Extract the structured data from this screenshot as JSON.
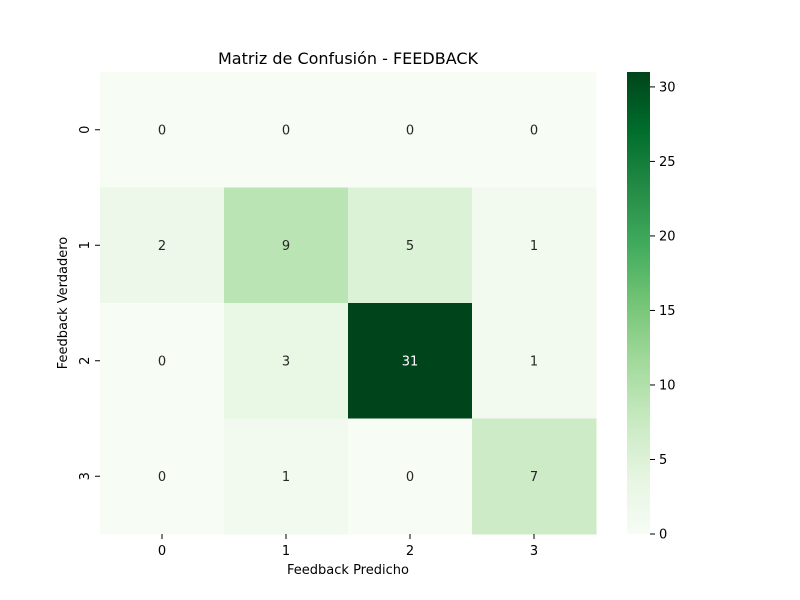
{
  "chart_data": {
    "type": "heatmap",
    "title": "Matriz de Confusión - FEEDBACK",
    "xlabel": "Feedback Predicho",
    "ylabel": "Feedback Verdadero",
    "x_categories": [
      "0",
      "1",
      "2",
      "3"
    ],
    "y_categories": [
      "0",
      "1",
      "2",
      "3"
    ],
    "values": [
      [
        0,
        0,
        0,
        0
      ],
      [
        2,
        9,
        5,
        1
      ],
      [
        0,
        3,
        31,
        1
      ],
      [
        0,
        1,
        0,
        7
      ]
    ],
    "colorbar": {
      "min": 0,
      "max": 31,
      "ticks": [
        "0",
        "5",
        "10",
        "15",
        "20",
        "25",
        "30"
      ],
      "colormap": "Greens",
      "low_color": "#f7fcf5",
      "high_color": "#00441b"
    }
  }
}
